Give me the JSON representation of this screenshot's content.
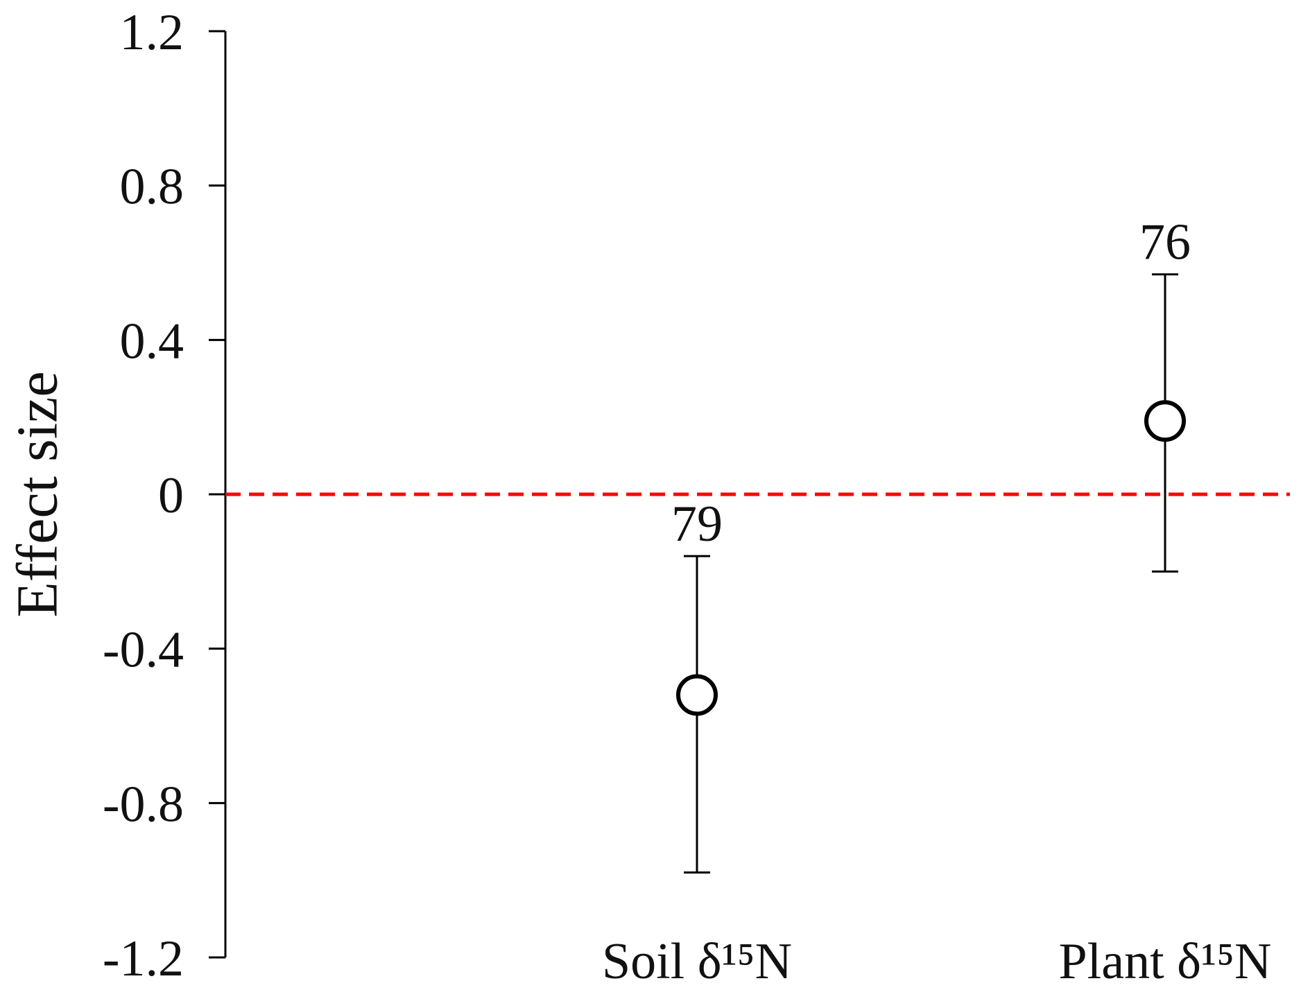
{
  "chart_data": {
    "type": "errorbar",
    "ylabel": "Effect size",
    "categories": [
      "Soil δ¹⁵N",
      "Plant δ¹⁵N"
    ],
    "values": [
      -0.52,
      0.19
    ],
    "lower": [
      -0.98,
      -0.2
    ],
    "upper": [
      -0.16,
      0.57
    ],
    "sample_sizes": [
      79,
      76
    ],
    "ylim": [
      -1.2,
      1.2
    ],
    "yticks": [
      -1.2,
      -0.8,
      -0.4,
      0,
      0.4,
      0.8,
      1.2
    ],
    "reference_line": {
      "value": 0,
      "color": "#ff0000"
    },
    "color": "#000000"
  }
}
